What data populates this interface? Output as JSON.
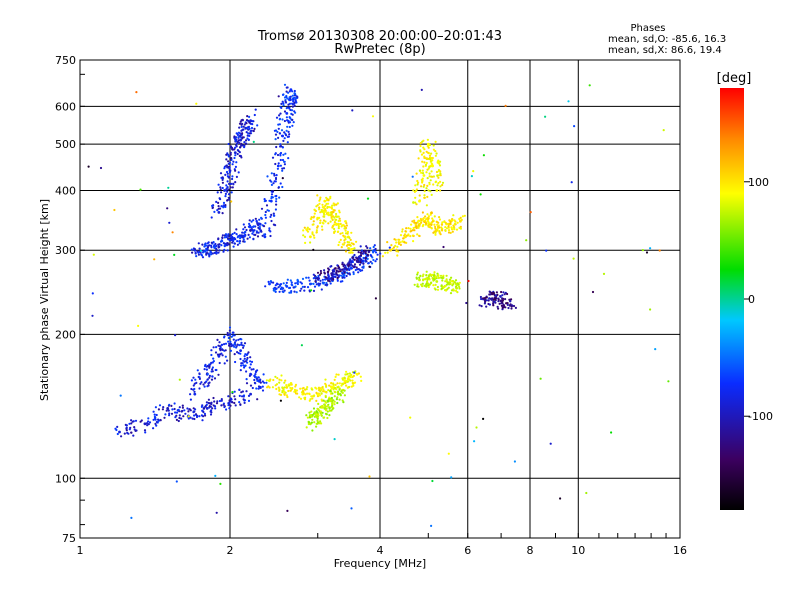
{
  "chart_data": {
    "type": "scatter",
    "title": "Tromsø 20130308 20:00:00–20:01:43",
    "subtitle": "RwPretec (8p)",
    "info": {
      "heading": "Phases",
      "line1": "mean, sd,O: -85.6, 16.3",
      "line2": "mean, sd,X:  86.6, 19.4"
    },
    "xlabel": "Frequency [MHz]",
    "ylabel": "Stationary phase Virtual Height [km]",
    "x_scale": "log",
    "y_scale": "log",
    "xlim": [
      1,
      16
    ],
    "ylim": [
      75,
      750
    ],
    "x_ticks": [
      1,
      2,
      4,
      6,
      8,
      10,
      16
    ],
    "x_tick_labels": [
      "1",
      "2",
      "4",
      "6",
      "8",
      "10",
      "16"
    ],
    "y_ticks": [
      75,
      100,
      200,
      300,
      400,
      500,
      600,
      750
    ],
    "y_tick_labels": [
      "75",
      "100",
      "200",
      "300",
      "400",
      "500",
      "600",
      "750"
    ],
    "grid": true,
    "colorbar": {
      "label": "[deg]",
      "range": [
        -180,
        180
      ],
      "ticks": [
        100,
        0,
        -100
      ],
      "tick_labels": [
        "100",
        "0",
        "-100"
      ]
    },
    "traces": [
      {
        "f": [
          1.7,
          1.8,
          1.9,
          2.0,
          2.1,
          2.2,
          2.3
        ],
        "h": [
          300,
          300,
          305,
          315,
          320,
          330,
          340
        ],
        "phase": -105
      },
      {
        "f": [
          1.9,
          1.95,
          2.0,
          2.05,
          2.1,
          2.15,
          2.2
        ],
        "h": [
          360,
          400,
          440,
          480,
          510,
          540,
          560
        ],
        "phase": -110
      },
      {
        "f": [
          2.35,
          2.42,
          2.5,
          2.55,
          2.6,
          2.63,
          2.65
        ],
        "h": [
          320,
          380,
          450,
          520,
          580,
          620,
          650
        ],
        "phase": -100
      },
      {
        "f": [
          2.4,
          2.6,
          2.9,
          3.2,
          3.5,
          3.7,
          3.9
        ],
        "h": [
          255,
          252,
          255,
          262,
          275,
          285,
          300
        ],
        "phase": -95
      },
      {
        "f": [
          3.0,
          3.2,
          3.4,
          3.6,
          3.8
        ],
        "h": [
          262,
          268,
          275,
          285,
          298
        ],
        "phase": -125
      },
      {
        "f": [
          2.9,
          3.0,
          3.1,
          3.2,
          3.3,
          3.4,
          3.5
        ],
        "h": [
          320,
          350,
          380,
          360,
          340,
          320,
          300
        ],
        "phase": 95
      },
      {
        "f": [
          4.2,
          4.5,
          4.8,
          5.0,
          5.2,
          5.5,
          5.8
        ],
        "h": [
          300,
          320,
          340,
          350,
          330,
          340,
          345
        ],
        "phase": 100
      },
      {
        "f": [
          4.8,
          4.9,
          5.0,
          5.1,
          5.2
        ],
        "h": [
          380,
          430,
          500,
          450,
          400
        ],
        "phase": 90
      },
      {
        "f": [
          1.2,
          1.35,
          1.5,
          1.65,
          1.8,
          2.0,
          2.2
        ],
        "h": [
          125,
          130,
          140,
          135,
          140,
          145,
          150
        ],
        "phase": -110
      },
      {
        "f": [
          1.7,
          1.8,
          1.9,
          2.0,
          2.1,
          2.2,
          2.3
        ],
        "h": [
          150,
          165,
          180,
          200,
          185,
          165,
          155
        ],
        "phase": -105
      },
      {
        "f": [
          2.4,
          2.6,
          2.8,
          3.0,
          3.2,
          3.4,
          3.6
        ],
        "h": [
          160,
          155,
          150,
          150,
          155,
          160,
          165
        ],
        "phase": 90
      },
      {
        "f": [
          2.9,
          3.0,
          3.1,
          3.2,
          3.3
        ],
        "h": [
          130,
          135,
          140,
          145,
          150
        ],
        "phase": 60
      },
      {
        "f": [
          6.5,
          6.8,
          7.0,
          7.3
        ],
        "h": [
          236,
          238,
          235,
          230
        ],
        "phase": -130
      },
      {
        "f": [
          4.8,
          5.0,
          5.2,
          5.5,
          5.7
        ],
        "h": [
          260,
          262,
          258,
          255,
          250
        ],
        "phase": 70
      }
    ]
  }
}
